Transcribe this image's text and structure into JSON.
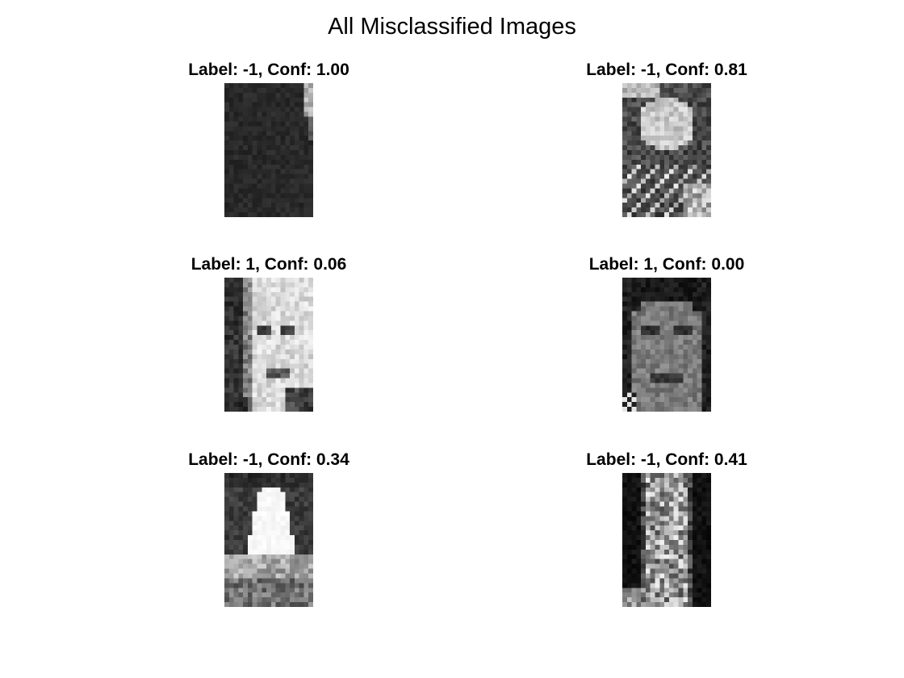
{
  "figure": {
    "title": "All Misclassified Images"
  },
  "panels": [
    {
      "title": "Label: -1, Conf: 1.00",
      "label": -1,
      "confidence": 1.0,
      "content": "dark-texture"
    },
    {
      "title": "Label: -1, Conf: 0.81",
      "label": -1,
      "confidence": 0.81,
      "content": "bright-blob"
    },
    {
      "title": "Label: 1, Conf: 0.06",
      "label": 1,
      "confidence": 0.06,
      "content": "bright-face"
    },
    {
      "title": "Label: 1, Conf: 0.00",
      "label": 1,
      "confidence": 0.0,
      "content": "dark-face"
    },
    {
      "title": "Label: -1, Conf: 0.34",
      "label": -1,
      "confidence": 0.34,
      "content": "white-trapezoid"
    },
    {
      "title": "Label: -1, Conf: 0.41",
      "label": -1,
      "confidence": 0.41,
      "content": "noisy-strip"
    }
  ]
}
